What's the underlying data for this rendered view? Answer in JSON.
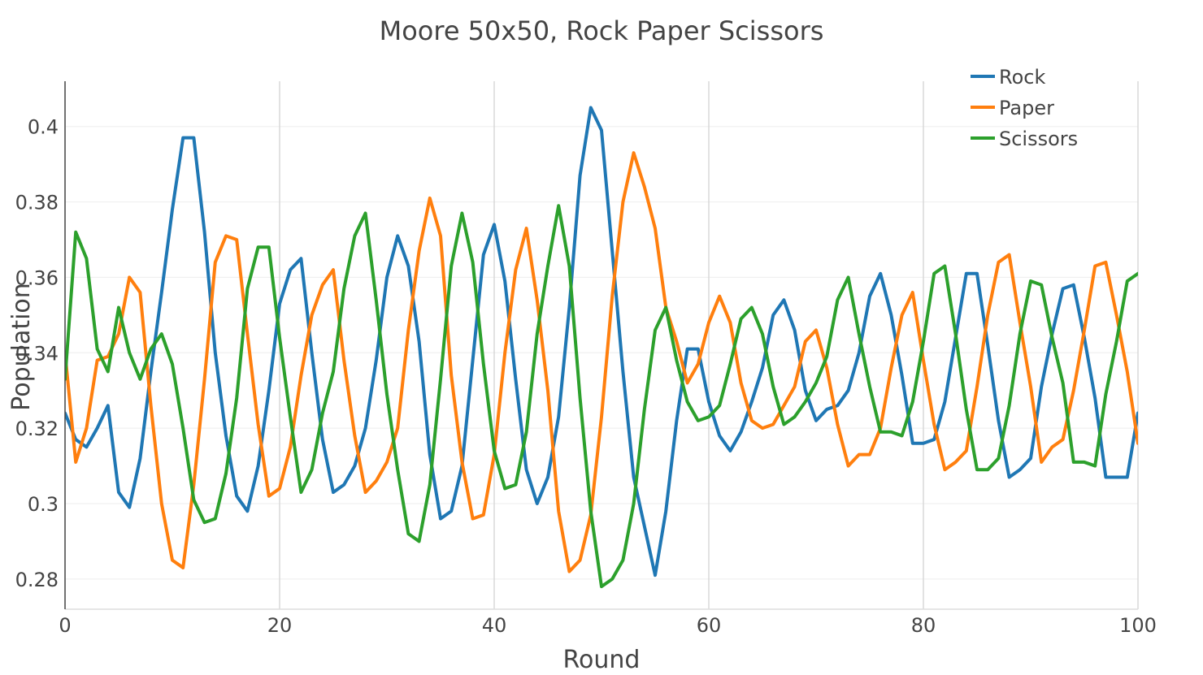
{
  "chart_data": {
    "type": "line",
    "title": "Moore 50x50, Rock Paper Scissors",
    "xlabel": "Round",
    "ylabel": "Population",
    "xlim": [
      0,
      100
    ],
    "ylim": [
      0.272,
      0.412
    ],
    "x_ticks": [
      0,
      20,
      40,
      60,
      80,
      100
    ],
    "y_ticks": [
      0.28,
      0.3,
      0.32,
      0.34,
      0.36,
      0.38,
      0.4
    ],
    "x_tick_labels": [
      "0",
      "20",
      "40",
      "60",
      "80",
      "100"
    ],
    "y_tick_labels": [
      "0.28",
      "0.3",
      "0.32",
      "0.34",
      "0.36",
      "0.38",
      "0.4"
    ],
    "grid": true,
    "legend_position": "top-right",
    "x": [
      0,
      1,
      2,
      3,
      4,
      5,
      6,
      7,
      8,
      9,
      10,
      11,
      12,
      13,
      14,
      15,
      16,
      17,
      18,
      19,
      20,
      21,
      22,
      23,
      24,
      25,
      26,
      27,
      28,
      29,
      30,
      31,
      32,
      33,
      34,
      35,
      36,
      37,
      38,
      39,
      40,
      41,
      42,
      43,
      44,
      45,
      46,
      47,
      48,
      49,
      50,
      51,
      52,
      53,
      54,
      55,
      56,
      57,
      58,
      59,
      60,
      61,
      62,
      63,
      64,
      65,
      66,
      67,
      68,
      69,
      70,
      71,
      72,
      73,
      74,
      75,
      76,
      77,
      78,
      79,
      80,
      81,
      82,
      83,
      84,
      85,
      86,
      87,
      88,
      89,
      90,
      91,
      92,
      93,
      94,
      95,
      96,
      97,
      98,
      99,
      100
    ],
    "series": [
      {
        "name": "Rock",
        "color": "#1f77b4",
        "values": [
          0.324,
          0.317,
          0.315,
          0.32,
          0.326,
          0.303,
          0.299,
          0.312,
          0.335,
          0.356,
          0.378,
          0.397,
          0.397,
          0.372,
          0.34,
          0.318,
          0.302,
          0.298,
          0.31,
          0.33,
          0.353,
          0.362,
          0.365,
          0.34,
          0.317,
          0.303,
          0.305,
          0.31,
          0.32,
          0.338,
          0.36,
          0.371,
          0.363,
          0.343,
          0.313,
          0.296,
          0.298,
          0.31,
          0.338,
          0.366,
          0.374,
          0.359,
          0.333,
          0.309,
          0.3,
          0.307,
          0.323,
          0.352,
          0.387,
          0.405,
          0.399,
          0.367,
          0.335,
          0.307,
          0.294,
          0.281,
          0.298,
          0.322,
          0.341,
          0.341,
          0.327,
          0.318,
          0.314,
          0.319,
          0.327,
          0.336,
          0.35,
          0.354,
          0.346,
          0.33,
          0.322,
          0.325,
          0.326,
          0.33,
          0.34,
          0.355,
          0.361,
          0.35,
          0.334,
          0.316,
          0.316,
          0.317,
          0.327,
          0.344,
          0.361,
          0.361,
          0.342,
          0.322,
          0.307,
          0.309,
          0.312,
          0.331,
          0.345,
          0.357,
          0.358,
          0.344,
          0.328,
          0.307,
          0.307,
          0.307,
          0.324
        ]
      },
      {
        "name": "Paper",
        "color": "#ff7f0e",
        "values": [
          0.34,
          0.311,
          0.32,
          0.338,
          0.339,
          0.345,
          0.36,
          0.356,
          0.326,
          0.3,
          0.285,
          0.283,
          0.305,
          0.333,
          0.364,
          0.371,
          0.37,
          0.345,
          0.321,
          0.302,
          0.304,
          0.315,
          0.334,
          0.35,
          0.358,
          0.362,
          0.338,
          0.318,
          0.303,
          0.306,
          0.311,
          0.32,
          0.346,
          0.367,
          0.381,
          0.371,
          0.334,
          0.311,
          0.296,
          0.297,
          0.313,
          0.34,
          0.362,
          0.373,
          0.354,
          0.33,
          0.298,
          0.282,
          0.285,
          0.297,
          0.323,
          0.355,
          0.38,
          0.393,
          0.384,
          0.373,
          0.352,
          0.343,
          0.332,
          0.337,
          0.348,
          0.355,
          0.348,
          0.332,
          0.322,
          0.32,
          0.321,
          0.326,
          0.331,
          0.343,
          0.346,
          0.336,
          0.321,
          0.31,
          0.313,
          0.313,
          0.32,
          0.336,
          0.35,
          0.356,
          0.338,
          0.321,
          0.309,
          0.311,
          0.314,
          0.331,
          0.35,
          0.364,
          0.366,
          0.348,
          0.331,
          0.311,
          0.315,
          0.317,
          0.33,
          0.346,
          0.363,
          0.364,
          0.35,
          0.335,
          0.316
        ]
      },
      {
        "name": "Scissors",
        "color": "#2ca02c",
        "values": [
          0.333,
          0.372,
          0.365,
          0.341,
          0.335,
          0.352,
          0.34,
          0.333,
          0.341,
          0.345,
          0.337,
          0.32,
          0.301,
          0.295,
          0.296,
          0.308,
          0.328,
          0.357,
          0.368,
          0.368,
          0.344,
          0.323,
          0.303,
          0.309,
          0.324,
          0.335,
          0.357,
          0.371,
          0.377,
          0.354,
          0.329,
          0.309,
          0.292,
          0.29,
          0.305,
          0.333,
          0.363,
          0.377,
          0.364,
          0.337,
          0.314,
          0.304,
          0.305,
          0.319,
          0.345,
          0.363,
          0.379,
          0.363,
          0.328,
          0.298,
          0.278,
          0.28,
          0.285,
          0.3,
          0.325,
          0.346,
          0.352,
          0.338,
          0.327,
          0.322,
          0.323,
          0.326,
          0.337,
          0.349,
          0.352,
          0.345,
          0.331,
          0.321,
          0.323,
          0.327,
          0.332,
          0.339,
          0.354,
          0.36,
          0.345,
          0.331,
          0.319,
          0.319,
          0.318,
          0.327,
          0.343,
          0.361,
          0.363,
          0.345,
          0.325,
          0.309,
          0.309,
          0.312,
          0.326,
          0.345,
          0.359,
          0.358,
          0.344,
          0.332,
          0.311,
          0.311,
          0.31,
          0.329,
          0.343,
          0.359,
          0.361
        ]
      }
    ]
  }
}
